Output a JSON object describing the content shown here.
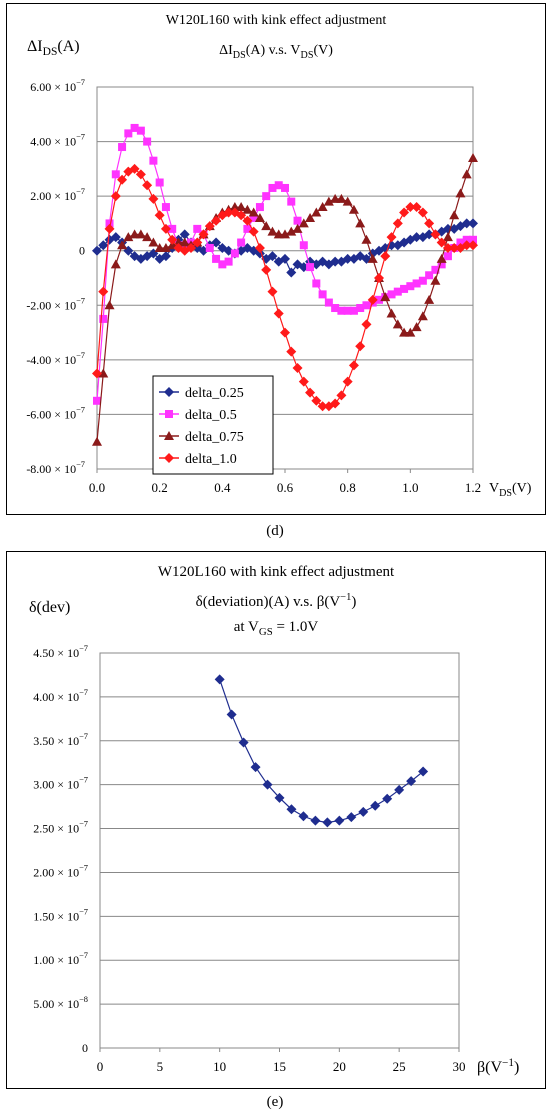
{
  "captions": {
    "d": "(d)",
    "e": "(e)"
  },
  "chart_data": [
    {
      "id": "d",
      "type": "scatter",
      "title_line1": "W120L160 with kink effect adjustment",
      "title_line2": "ΔIDS(A) v.s. VDS(V)",
      "ylabel": "ΔIDS(A)",
      "xlabel": "VDS(V)",
      "xlim": [
        0,
        1.2
      ],
      "ylim": [
        -8e-07,
        6e-07
      ],
      "x_ticks": [
        "0.0",
        "0.2",
        "0.4",
        "0.6",
        "0.8",
        "1.0",
        "1.2"
      ],
      "y_ticks": [
        "6.00 × 10^-7",
        "4.00 × 10^-7",
        "2.00 × 10^-7",
        "0",
        "-2.00 × 10^-7",
        "-4.00 × 10^-7",
        "-6.00 × 10^-7",
        "-8.00 × 10^-7"
      ],
      "grid": "horizontal",
      "legend_position": "bottom-left",
      "series": [
        {
          "name": "delta_0.25",
          "color": "#1f2d8f",
          "marker": "diamond",
          "x": [
            0,
            0.02,
            0.04,
            0.06,
            0.08,
            0.1,
            0.12,
            0.14,
            0.16,
            0.18,
            0.2,
            0.22,
            0.24,
            0.26,
            0.28,
            0.3,
            0.32,
            0.34,
            0.36,
            0.38,
            0.4,
            0.42,
            0.44,
            0.46,
            0.48,
            0.5,
            0.52,
            0.54,
            0.56,
            0.58,
            0.6,
            0.62,
            0.64,
            0.66,
            0.68,
            0.7,
            0.72,
            0.74,
            0.76,
            0.78,
            0.8,
            0.82,
            0.84,
            0.86,
            0.88,
            0.9,
            0.92,
            0.94,
            0.96,
            0.98,
            1.0,
            1.02,
            1.04,
            1.06,
            1.08,
            1.1,
            1.12,
            1.14,
            1.16,
            1.18,
            1.2
          ],
          "y": [
            0,
            2e-08,
            4e-08,
            5e-08,
            3e-08,
            0,
            -2e-08,
            -3e-08,
            -2e-08,
            -1e-08,
            -3e-08,
            -2e-08,
            1e-08,
            4e-08,
            6e-08,
            3e-08,
            1e-08,
            0,
            2e-08,
            3e-08,
            1e-08,
            0,
            -1e-08,
            0,
            1e-08,
            0,
            -1e-08,
            -3e-08,
            -2e-08,
            -4e-08,
            -3e-08,
            -8e-08,
            -5e-08,
            -6e-08,
            -4e-08,
            -5e-08,
            -4e-08,
            -5e-08,
            -4e-08,
            -4e-08,
            -3e-08,
            -3e-08,
            -2e-08,
            -3e-08,
            -1e-08,
            0,
            1e-08,
            2e-08,
            2e-08,
            3e-08,
            4e-08,
            5e-08,
            5e-08,
            6e-08,
            6e-08,
            7e-08,
            8e-08,
            8e-08,
            9e-08,
            1e-07,
            1e-07
          ]
        },
        {
          "name": "delta_0.5",
          "color": "#ff33ff",
          "marker": "square",
          "x": [
            0,
            0.02,
            0.04,
            0.06,
            0.08,
            0.1,
            0.12,
            0.14,
            0.16,
            0.18,
            0.2,
            0.22,
            0.24,
            0.26,
            0.28,
            0.3,
            0.32,
            0.34,
            0.36,
            0.38,
            0.4,
            0.42,
            0.44,
            0.46,
            0.48,
            0.5,
            0.52,
            0.54,
            0.56,
            0.58,
            0.6,
            0.62,
            0.64,
            0.66,
            0.68,
            0.7,
            0.72,
            0.74,
            0.76,
            0.78,
            0.8,
            0.82,
            0.84,
            0.86,
            0.88,
            0.9,
            0.92,
            0.94,
            0.96,
            0.98,
            1.0,
            1.02,
            1.04,
            1.06,
            1.08,
            1.1,
            1.12,
            1.14,
            1.16,
            1.18,
            1.2
          ],
          "y": [
            -5.5e-07,
            -2.5e-07,
            1e-07,
            2.8e-07,
            3.8e-07,
            4.3e-07,
            4.5e-07,
            4.4e-07,
            4e-07,
            3.3e-07,
            2.5e-07,
            1.6e-07,
            8e-08,
            2e-08,
            1e-08,
            3e-08,
            8e-08,
            6e-08,
            1e-08,
            -3e-08,
            -5e-08,
            -4e-08,
            -1e-08,
            3e-08,
            8e-08,
            1.2e-07,
            1.6e-07,
            2e-07,
            2.3e-07,
            2.4e-07,
            2.3e-07,
            1.8e-07,
            1.1e-07,
            2e-08,
            -6e-08,
            -1.2e-07,
            -1.6e-07,
            -1.9e-07,
            -2.1e-07,
            -2.2e-07,
            -2.2e-07,
            -2.2e-07,
            -2.1e-07,
            -2e-07,
            -1.9e-07,
            -1.8e-07,
            -1.7e-07,
            -1.6e-07,
            -1.5e-07,
            -1.4e-07,
            -1.3e-07,
            -1.2e-07,
            -1.1e-07,
            -9e-08,
            -7e-08,
            -5e-08,
            -2e-08,
            1e-08,
            3e-08,
            4e-08,
            4e-08
          ]
        },
        {
          "name": "delta_0.75",
          "color": "#8b1a1a",
          "marker": "triangle",
          "x": [
            0,
            0.02,
            0.04,
            0.06,
            0.08,
            0.1,
            0.12,
            0.14,
            0.16,
            0.18,
            0.2,
            0.22,
            0.24,
            0.26,
            0.28,
            0.3,
            0.32,
            0.34,
            0.36,
            0.38,
            0.4,
            0.42,
            0.44,
            0.46,
            0.48,
            0.5,
            0.52,
            0.54,
            0.56,
            0.58,
            0.6,
            0.62,
            0.64,
            0.66,
            0.68,
            0.7,
            0.72,
            0.74,
            0.76,
            0.78,
            0.8,
            0.82,
            0.84,
            0.86,
            0.88,
            0.9,
            0.92,
            0.94,
            0.96,
            0.98,
            1.0,
            1.02,
            1.04,
            1.06,
            1.08,
            1.1,
            1.12,
            1.14,
            1.16,
            1.18,
            1.2
          ],
          "y": [
            -7e-07,
            -4.5e-07,
            -2e-07,
            -5e-08,
            2e-08,
            5e-08,
            6e-08,
            6e-08,
            5e-08,
            3e-08,
            1e-08,
            1e-08,
            2e-08,
            3e-08,
            3e-08,
            2e-08,
            3e-08,
            6e-08,
            9e-08,
            1.2e-07,
            1.4e-07,
            1.5e-07,
            1.6e-07,
            1.6e-07,
            1.5e-07,
            1.4e-07,
            1.2e-07,
            9e-08,
            7e-08,
            6e-08,
            6e-08,
            7e-08,
            8e-08,
            1e-07,
            1.2e-07,
            1.4e-07,
            1.6e-07,
            1.8e-07,
            1.9e-07,
            1.9e-07,
            1.8e-07,
            1.5e-07,
            1e-07,
            4e-08,
            -3e-08,
            -1e-07,
            -1.7e-07,
            -2.3e-07,
            -2.7e-07,
            -3e-07,
            -3e-07,
            -2.8e-07,
            -2.4e-07,
            -1.8e-07,
            -1.1e-07,
            -3e-08,
            5e-08,
            1.3e-07,
            2.1e-07,
            2.8e-07,
            3.4e-07
          ]
        },
        {
          "name": "delta_1.0",
          "color": "#ff1a1a",
          "marker": "diamond",
          "x": [
            0,
            0.02,
            0.04,
            0.06,
            0.08,
            0.1,
            0.12,
            0.14,
            0.16,
            0.18,
            0.2,
            0.22,
            0.24,
            0.26,
            0.28,
            0.3,
            0.32,
            0.34,
            0.36,
            0.38,
            0.4,
            0.42,
            0.44,
            0.46,
            0.48,
            0.5,
            0.52,
            0.54,
            0.56,
            0.58,
            0.6,
            0.62,
            0.64,
            0.66,
            0.68,
            0.7,
            0.72,
            0.74,
            0.76,
            0.78,
            0.8,
            0.82,
            0.84,
            0.86,
            0.88,
            0.9,
            0.92,
            0.94,
            0.96,
            0.98,
            1.0,
            1.02,
            1.04,
            1.06,
            1.08,
            1.1,
            1.12,
            1.14,
            1.16,
            1.18,
            1.2
          ],
          "y": [
            -4.5e-07,
            -1.5e-07,
            8e-08,
            2e-07,
            2.6e-07,
            2.9e-07,
            3e-07,
            2.8e-07,
            2.4e-07,
            1.9e-07,
            1.3e-07,
            8e-08,
            4e-08,
            1e-08,
            0,
            1e-08,
            3e-08,
            6e-08,
            9e-08,
            1.1e-07,
            1.3e-07,
            1.4e-07,
            1.4e-07,
            1.3e-07,
            1.1e-07,
            7e-08,
            1e-08,
            -7e-08,
            -1.5e-07,
            -2.3e-07,
            -3e-07,
            -3.7e-07,
            -4.3e-07,
            -4.8e-07,
            -5.2e-07,
            -5.5e-07,
            -5.7e-07,
            -5.7e-07,
            -5.6e-07,
            -5.3e-07,
            -4.8e-07,
            -4.2e-07,
            -3.5e-07,
            -2.7e-07,
            -1.8e-07,
            -1e-07,
            -2e-08,
            5e-08,
            1e-07,
            1.4e-07,
            1.6e-07,
            1.6e-07,
            1.4e-07,
            1e-07,
            6e-08,
            3e-08,
            1e-08,
            1e-08,
            1e-08,
            2e-08,
            2e-08
          ]
        }
      ]
    },
    {
      "id": "e",
      "type": "line",
      "title_line1": "W120L160 with kink effect adjustment",
      "title_line2": "δ(deviation)(A) v.s. β(V^-1)",
      "title_line3": "at VGS = 1.0V",
      "ylabel": "δ(dev)",
      "xlabel": "β(V^-1)",
      "xlim": [
        0,
        30
      ],
      "ylim": [
        0,
        4.5e-07
      ],
      "x_ticks": [
        "0",
        "5",
        "10",
        "15",
        "20",
        "25",
        "30"
      ],
      "y_ticks": [
        "4.50 × 10^-7",
        "4.00 × 10^-7",
        "3.50 × 10^-7",
        "3.00 × 10^-7",
        "2.50 × 10^-7",
        "2.00 × 10^-7",
        "1.50 × 10^-7",
        "1.00 × 10^-7",
        "5.00 × 10^-8",
        "0"
      ],
      "grid": "horizontal",
      "series": [
        {
          "color": "#1f2d8f",
          "marker": "diamond",
          "x": [
            10,
            11,
            12,
            13,
            14,
            15,
            16,
            17,
            18,
            19,
            20,
            21,
            22,
            23,
            24,
            25,
            26,
            27
          ],
          "y": [
            4.2e-07,
            3.8e-07,
            3.48e-07,
            3.2e-07,
            3e-07,
            2.85e-07,
            2.72e-07,
            2.64e-07,
            2.59e-07,
            2.57e-07,
            2.59e-07,
            2.63e-07,
            2.69e-07,
            2.76e-07,
            2.84e-07,
            2.94e-07,
            3.04e-07,
            3.15e-07
          ]
        }
      ]
    }
  ]
}
